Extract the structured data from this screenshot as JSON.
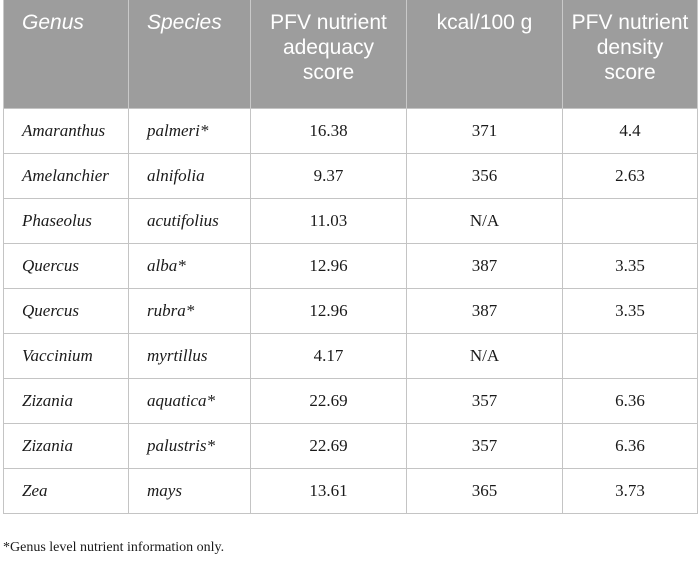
{
  "table": {
    "headers": {
      "genus": "Genus",
      "species": "Species",
      "adequacy": "PFV nutrient adequacy score",
      "kcal": "kcal/100 g",
      "density": "PFV nutrient density score"
    },
    "rows": [
      {
        "genus": "Amaranthus",
        "species": "palmeri*",
        "adequacy": "16.38",
        "kcal": "371",
        "density": "4.4"
      },
      {
        "genus": "Amelanchier",
        "species": "alnifolia",
        "adequacy": "9.37",
        "kcal": "356",
        "density": "2.63"
      },
      {
        "genus": "Phaseolus",
        "species": "acutifolius",
        "adequacy": "11.03",
        "kcal": "N/A",
        "density": ""
      },
      {
        "genus": "Quercus",
        "species": "alba*",
        "adequacy": "12.96",
        "kcal": "387",
        "density": "3.35"
      },
      {
        "genus": "Quercus",
        "species": "rubra*",
        "adequacy": "12.96",
        "kcal": "387",
        "density": "3.35"
      },
      {
        "genus": "Vaccinium",
        "species": "myrtillus",
        "adequacy": "4.17",
        "kcal": "N/A",
        "density": ""
      },
      {
        "genus": "Zizania",
        "species": "aquatica*",
        "adequacy": "22.69",
        "kcal": "357",
        "density": "6.36"
      },
      {
        "genus": "Zizania",
        "species": "palustris*",
        "adequacy": "22.69",
        "kcal": "357",
        "density": "6.36"
      },
      {
        "genus": "Zea",
        "species": "mays",
        "adequacy": "13.61",
        "kcal": "365",
        "density": "3.73"
      }
    ]
  },
  "footnote": "*Genus level nutrient information only.",
  "colors": {
    "header_bg": "#9d9d9d",
    "header_text": "#ffffff",
    "border": "#c4c4c4"
  }
}
